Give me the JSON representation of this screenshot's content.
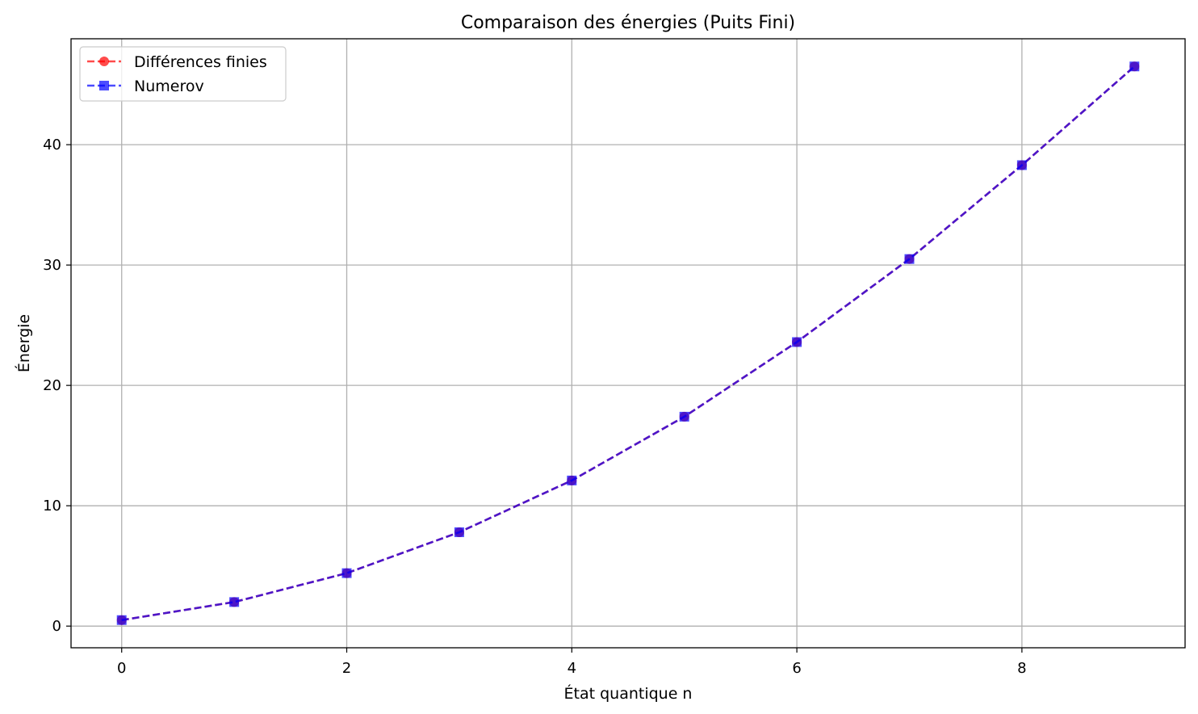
{
  "chart_data": {
    "type": "line",
    "title": "Comparaison des énergies (Puits Fini)",
    "xlabel": "État quantique n",
    "ylabel": "Énergie",
    "xlim": [
      -0.45,
      9.45
    ],
    "ylim": [
      -1.8,
      48.8
    ],
    "xticks": [
      0,
      2,
      4,
      6,
      8
    ],
    "yticks": [
      0,
      10,
      20,
      30,
      40
    ],
    "grid": true,
    "legend_position": "top-left",
    "x": [
      0,
      1,
      2,
      3,
      4,
      5,
      6,
      7,
      8,
      9
    ],
    "series": [
      {
        "name": "Différences finies",
        "values": [
          0.5,
          2.0,
          4.4,
          7.8,
          12.1,
          17.4,
          23.6,
          30.5,
          38.3,
          46.5
        ],
        "color": "#ff0000",
        "marker": "circle",
        "linestyle": "dashed"
      },
      {
        "name": "Numerov",
        "values": [
          0.5,
          2.0,
          4.4,
          7.8,
          12.1,
          17.4,
          23.6,
          30.5,
          38.3,
          46.5
        ],
        "color": "#0000ff",
        "marker": "square",
        "linestyle": "dashed"
      }
    ]
  }
}
